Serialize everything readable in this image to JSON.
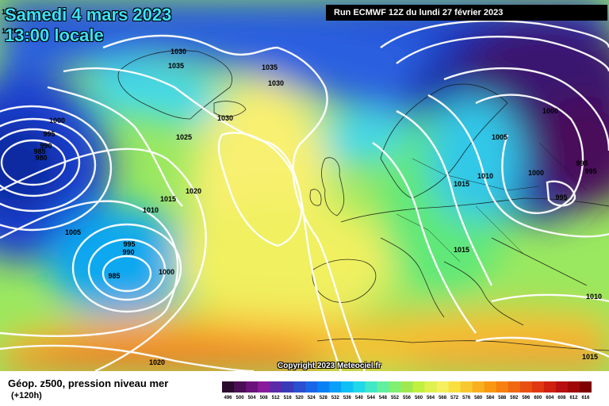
{
  "header": {
    "date_line": "Samedi 4 mars 2023",
    "time_line": "13:00 locale",
    "run_info": "Run ECMWF 12Z du lundi 27 février 2023",
    "copyright": "Copyright 2023 Meteociel.fr"
  },
  "footer": {
    "field_title": "Géop. z500, pression niveau mer",
    "forecast_hour": "(+120h)"
  },
  "legend": {
    "levels": [
      "496",
      "500",
      "504",
      "508",
      "512",
      "516",
      "520",
      "524",
      "528",
      "532",
      "536",
      "540",
      "544",
      "548",
      "552",
      "556",
      "560",
      "564",
      "568",
      "572",
      "576",
      "580",
      "584",
      "588",
      "592",
      "596",
      "600",
      "604",
      "608",
      "612",
      "616"
    ],
    "colors": [
      "#2b0a2e",
      "#4b0f56",
      "#6a137a",
      "#8a1a9c",
      "#5a2aa8",
      "#3a3ab8",
      "#2a4fd0",
      "#1a66e8",
      "#0a80f5",
      "#0aa0f8",
      "#10c0f5",
      "#20d8e8",
      "#40e8c8",
      "#60f0a0",
      "#80f070",
      "#a0e850",
      "#c0f040",
      "#e0f050",
      "#f5f060",
      "#f8e040",
      "#f8c830",
      "#f8b020",
      "#f89810",
      "#f88010",
      "#f06810",
      "#e85010",
      "#e03810",
      "#d02010",
      "#b81010",
      "#a00808",
      "#800000"
    ]
  },
  "map": {
    "pressure_labels": [
      "1025",
      "1020",
      "1030",
      "1035",
      "1035",
      "1030",
      "1030",
      "1000",
      "995",
      "990",
      "985",
      "980",
      "1025",
      "1020",
      "1015",
      "1010",
      "1005",
      "995",
      "990",
      "985",
      "1000",
      "1020",
      "1000",
      "1005",
      "1010",
      "1015",
      "1000",
      "995",
      "995",
      "995",
      "1015",
      "1010",
      "1015"
    ],
    "colors": {
      "deep_low": "#3a1060",
      "low": "#1a3fd0",
      "mid": "#20c8f0",
      "ridge": "#f5f070",
      "warm": "#f07020",
      "isobar": "#ffffff",
      "land_border": "#111111"
    }
  }
}
